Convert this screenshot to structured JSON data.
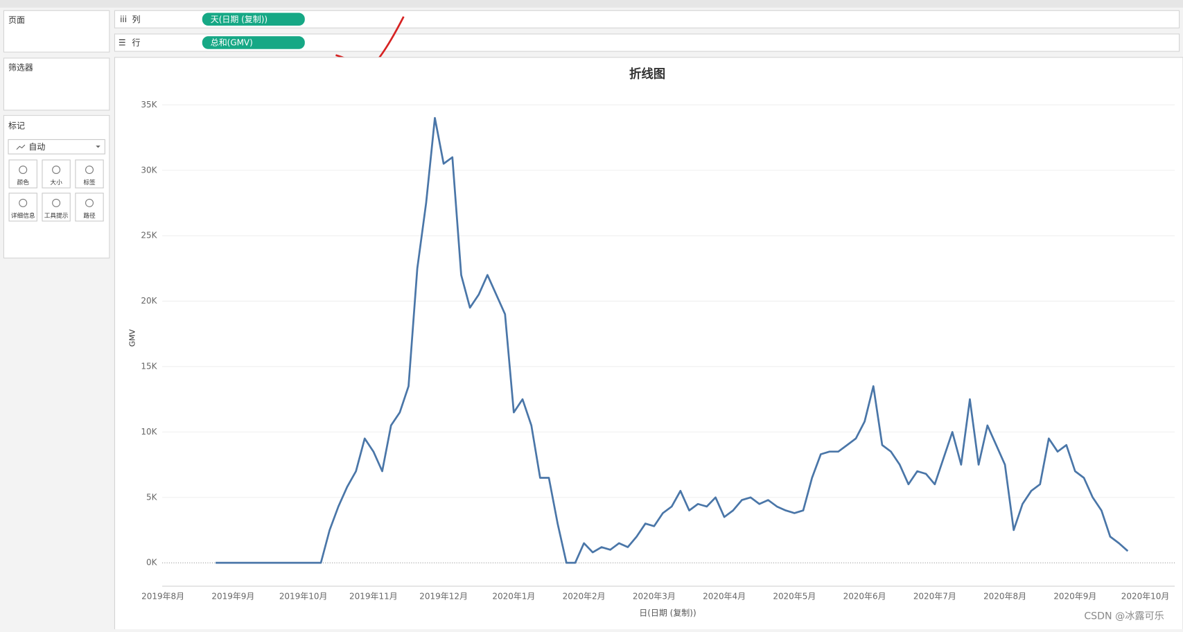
{
  "ui": {
    "pages": "页面",
    "columns_label": "列",
    "columns_pill": "天(日期 (复制))",
    "rows_label": "行",
    "rows_pill": "总和(GMV)",
    "filters": "筛选器",
    "marks": "标记",
    "mark_type": "自动",
    "mark_buttons": [
      "颜色",
      "大小",
      "标签",
      "详细信息",
      "工具提示",
      "路径"
    ],
    "watermark": "CSDN @冰露可乐"
  },
  "chart_data": {
    "type": "line",
    "title": "折线图",
    "y_label": "GMV",
    "x_label": "日(日期 (复制))",
    "color": "#4a76a8",
    "categories": [
      "2019年8月",
      null,
      null,
      null,
      null,
      null,
      null,
      null,
      "2019年9月",
      null,
      null,
      null,
      null,
      null,
      null,
      null,
      "2019年10月",
      null,
      null,
      null,
      null,
      null,
      null,
      null,
      "2019年11月",
      null,
      null,
      null,
      null,
      null,
      null,
      null,
      "2019年12月",
      null,
      null,
      null,
      null,
      null,
      null,
      null,
      "2020年1月",
      null,
      null,
      null,
      null,
      null,
      null,
      null,
      "2020年2月",
      null,
      null,
      null,
      null,
      null,
      null,
      null,
      "2020年3月",
      null,
      null,
      null,
      null,
      null,
      null,
      null,
      "2020年4月",
      null,
      null,
      null,
      null,
      null,
      null,
      null,
      "2020年5月",
      null,
      null,
      null,
      null,
      null,
      null,
      null,
      "2020年6月",
      null,
      null,
      null,
      null,
      null,
      null,
      null,
      "2020年7月",
      null,
      null,
      null,
      null,
      null,
      null,
      null,
      "2020年8月",
      null,
      null,
      null,
      null,
      null,
      null,
      null,
      "2020年9月",
      null,
      null,
      null,
      null,
      null,
      null,
      null,
      "2020年10月"
    ],
    "values": [
      null,
      null,
      null,
      null,
      null,
      null,
      0,
      0,
      0,
      0,
      0,
      0,
      0,
      0,
      0,
      0,
      0,
      0,
      0,
      2500,
      4300,
      5800,
      7000,
      9500,
      8500,
      7000,
      10500,
      11500,
      13500,
      22500,
      27500,
      34000,
      30500,
      31000,
      22000,
      19500,
      20500,
      22000,
      20500,
      19000,
      11500,
      12500,
      10500,
      6500,
      6500,
      3000,
      0,
      0,
      1500,
      800,
      1200,
      1000,
      1500,
      1200,
      2000,
      3000,
      2800,
      3800,
      4300,
      5500,
      4000,
      4500,
      4300,
      5000,
      3500,
      4000,
      4800,
      5000,
      4500,
      4800,
      4300,
      4000,
      3800,
      4000,
      6500,
      8300,
      8500,
      8500,
      9000,
      9500,
      10800,
      13500,
      9000,
      8500,
      7500,
      6000,
      7000,
      6800,
      6000,
      8000,
      10000,
      7500,
      12500,
      7500,
      10500,
      9000,
      7500,
      2500,
      4500,
      5500,
      6000,
      9500,
      8500,
      9000,
      7000,
      6500,
      5000,
      4000,
      2000,
      1500,
      900,
      null,
      null
    ],
    "ylim": [
      0,
      35000
    ],
    "yticks": [
      {
        "value": 0,
        "label": "0K"
      },
      {
        "value": 5000,
        "label": "5K"
      },
      {
        "value": 10000,
        "label": "10K"
      },
      {
        "value": 15000,
        "label": "15K"
      },
      {
        "value": 20000,
        "label": "20K"
      },
      {
        "value": 25000,
        "label": "25K"
      },
      {
        "value": 30000,
        "label": "30K"
      },
      {
        "value": 35000,
        "label": "35K"
      }
    ],
    "grid": true
  }
}
